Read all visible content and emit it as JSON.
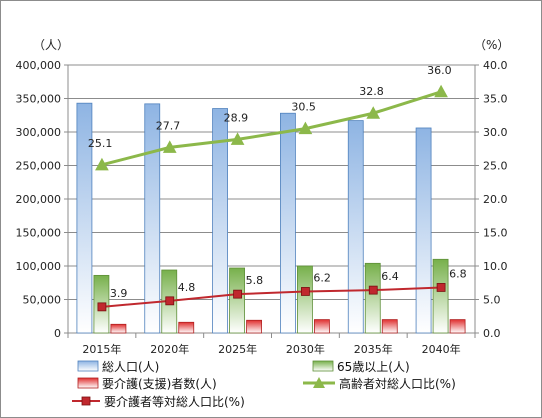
{
  "chart_data": {
    "type": "bar",
    "categories": [
      "2015年",
      "2020年",
      "2025年",
      "2030年",
      "2035年",
      "2040年"
    ],
    "left_unit": "（人）",
    "right_unit": "（%）",
    "left_axis": {
      "min": 0,
      "max": 400000,
      "step": 50000,
      "ticks": [
        "0",
        "50,000",
        "100,000",
        "150,000",
        "200,000",
        "250,000",
        "300,000",
        "350,000",
        "400,000"
      ]
    },
    "right_axis": {
      "min": 0,
      "max": 40,
      "step": 5,
      "ticks": [
        "0.0",
        "5.0",
        "10.0",
        "15.0",
        "20.0",
        "25.0",
        "30.0",
        "35.0",
        "40.0"
      ]
    },
    "grid": "horizontal",
    "legend_position": "bottom",
    "bar_series": [
      {
        "name": "総人口(人)",
        "axis": "left",
        "color": "#4f81bd",
        "values": [
          343000,
          342000,
          335000,
          328000,
          317000,
          306000
        ]
      },
      {
        "name": "65歳以上(人)",
        "axis": "left",
        "color": "#77b04b",
        "values": [
          86000,
          94000,
          97000,
          100000,
          104000,
          110000
        ]
      },
      {
        "name": "要介護(支援)者数(人)",
        "axis": "left",
        "color": "#e03030",
        "values": [
          13000,
          16000,
          19000,
          20000,
          20000,
          20000
        ]
      }
    ],
    "line_series": [
      {
        "name": "高齢者対総人口比(%)",
        "axis": "right",
        "color": "#8cb84a",
        "marker": "triangle",
        "values": [
          25.1,
          27.7,
          28.9,
          30.5,
          32.8,
          36.0
        ],
        "labels": [
          "25.1",
          "27.7",
          "28.9",
          "30.5",
          "32.8",
          "36.0"
        ]
      },
      {
        "name": "要介護者等対総人口比(%)",
        "axis": "right",
        "color": "#c0282e",
        "marker": "square",
        "values": [
          3.9,
          4.8,
          5.8,
          6.2,
          6.4,
          6.8
        ],
        "labels": [
          "3.9",
          "4.8",
          "5.8",
          "6.2",
          "6.4",
          "6.8"
        ]
      }
    ]
  }
}
